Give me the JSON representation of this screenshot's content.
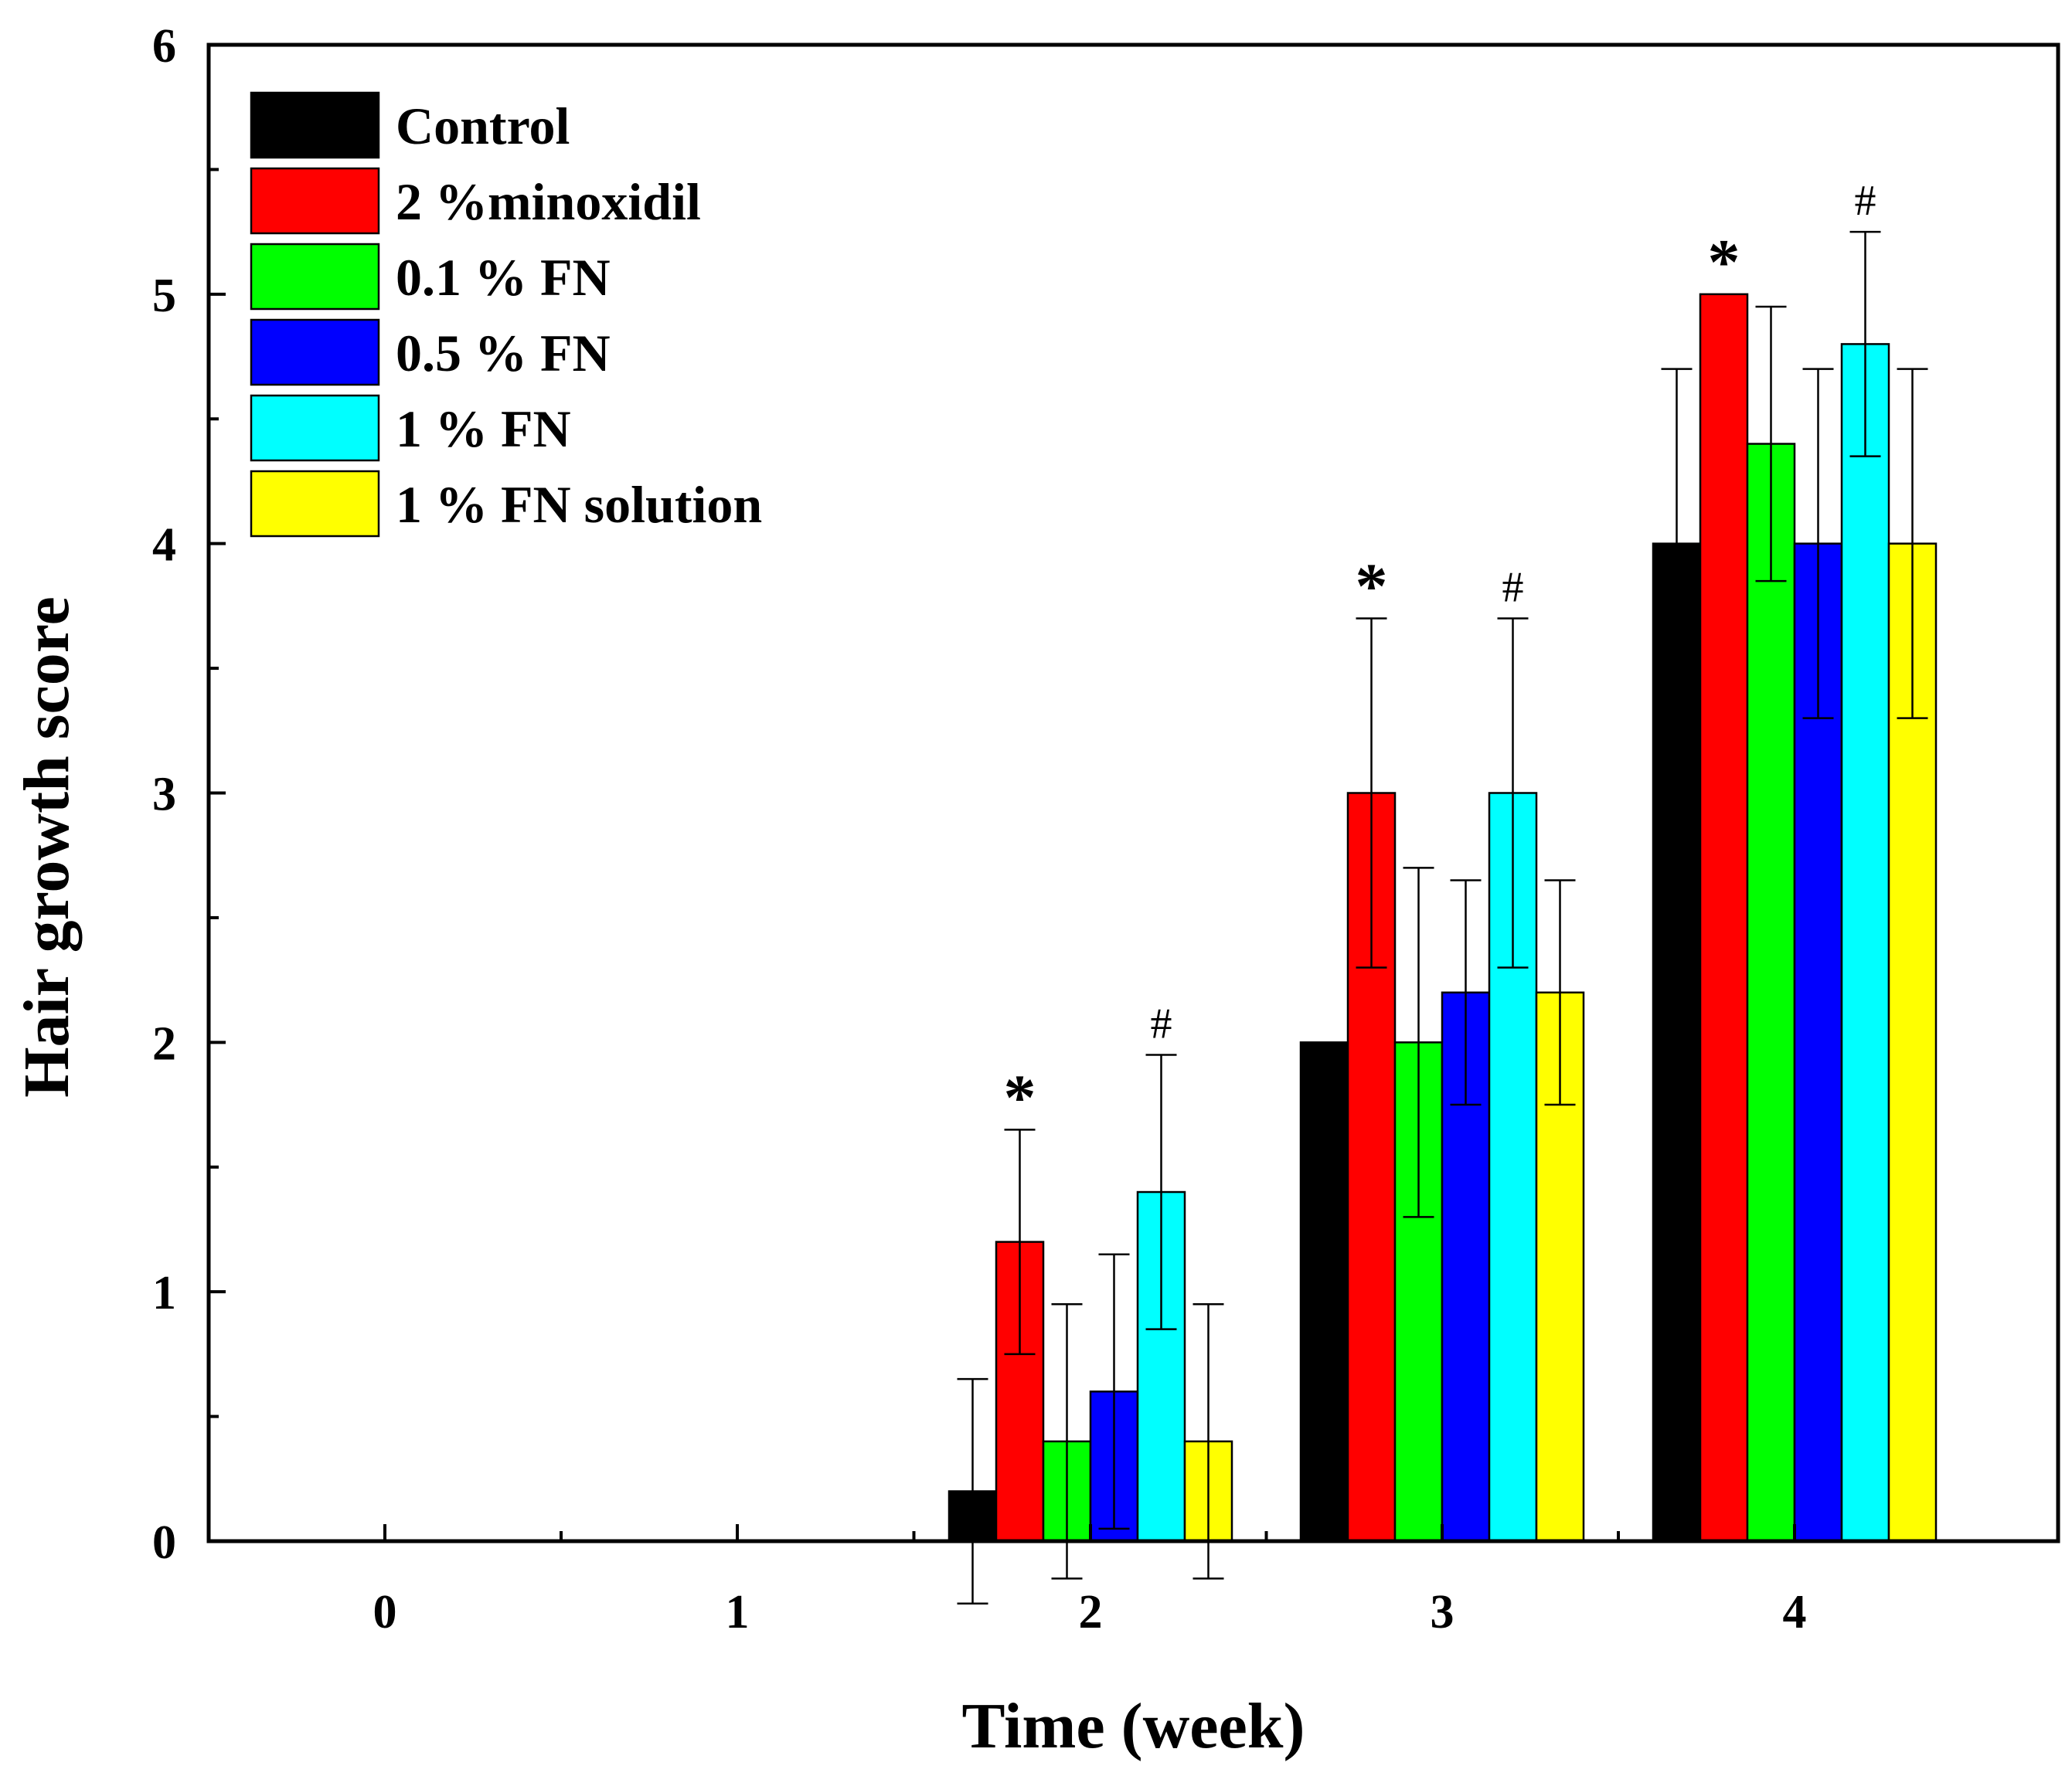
{
  "chart_data": {
    "type": "bar",
    "xlabel": "Time (week)",
    "ylabel": "Hair growth score",
    "categories": [
      "0",
      "1",
      "2",
      "3",
      "4"
    ],
    "ylim": [
      0,
      6
    ],
    "yticks": [
      "0",
      "1",
      "2",
      "3",
      "4",
      "5",
      "6"
    ],
    "legend_position": "top-left",
    "series": [
      {
        "name": "Control",
        "color": "#000000",
        "values": [
          0,
          0,
          0.2,
          2.0,
          4.0
        ],
        "errors": [
          0,
          0,
          0.45,
          0,
          0.7
        ]
      },
      {
        "name": "2 %minoxidil",
        "color": "#ff0000",
        "values": [
          0,
          0,
          1.2,
          3.0,
          5.0
        ],
        "errors": [
          0,
          0,
          0.45,
          0.7,
          0
        ]
      },
      {
        "name": "0.1 % FN",
        "color": "#00ff00",
        "values": [
          0,
          0,
          0.4,
          2.0,
          4.4
        ],
        "errors": [
          0,
          0,
          0.55,
          0.7,
          0.55
        ]
      },
      {
        "name": "0.5 % FN",
        "color": "#0000ff",
        "values": [
          0,
          0,
          0.6,
          2.2,
          4.0
        ],
        "errors": [
          0,
          0,
          0.55,
          0.45,
          0.7
        ]
      },
      {
        "name": "1 % FN",
        "color": "#00ffff",
        "values": [
          0,
          0,
          1.4,
          3.0,
          4.8
        ],
        "errors": [
          0,
          0,
          0.55,
          0.7,
          0.45
        ]
      },
      {
        "name": "1 % FN solution",
        "color": "#ffff00",
        "values": [
          0,
          0,
          0.4,
          2.2,
          4.0
        ],
        "errors": [
          0,
          0,
          0.55,
          0.45,
          0.7
        ]
      }
    ],
    "annotations": [
      {
        "text": "*",
        "category": "2",
        "series": "2 %minoxidil"
      },
      {
        "text": "#",
        "category": "2",
        "series": "1 % FN"
      },
      {
        "text": "*",
        "category": "3",
        "series": "2 %minoxidil"
      },
      {
        "text": "#",
        "category": "3",
        "series": "1 % FN"
      },
      {
        "text": "*",
        "category": "4",
        "series": "2 %minoxidil"
      },
      {
        "text": "#",
        "category": "4",
        "series": "1 % FN"
      }
    ]
  }
}
